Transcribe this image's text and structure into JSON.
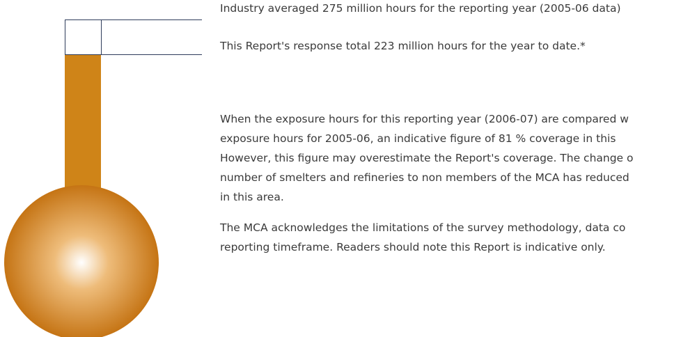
{
  "callouts": [
    "Industry averaged 275 million hours for the reporting year (2005-06 data)",
    "This Report's response total 223 million hours for the year to date.*"
  ],
  "paragraphs": [
    {
      "lines": [
        "When the exposure hours for this reporting year (2006-07) are compared w",
        "exposure hours for 2005-06, an indicative figure of 81 % coverage in this",
        "However, this figure may overestimate the Report's coverage. The change o",
        "number of smelters and refineries to non members of the MCA has reduced",
        "in this area."
      ]
    },
    {
      "lines": [
        "The MCA acknowledges the limitations of the survey methodology, data co",
        "reporting timeframe. Readers should note this Report is indicative only."
      ]
    }
  ]
}
